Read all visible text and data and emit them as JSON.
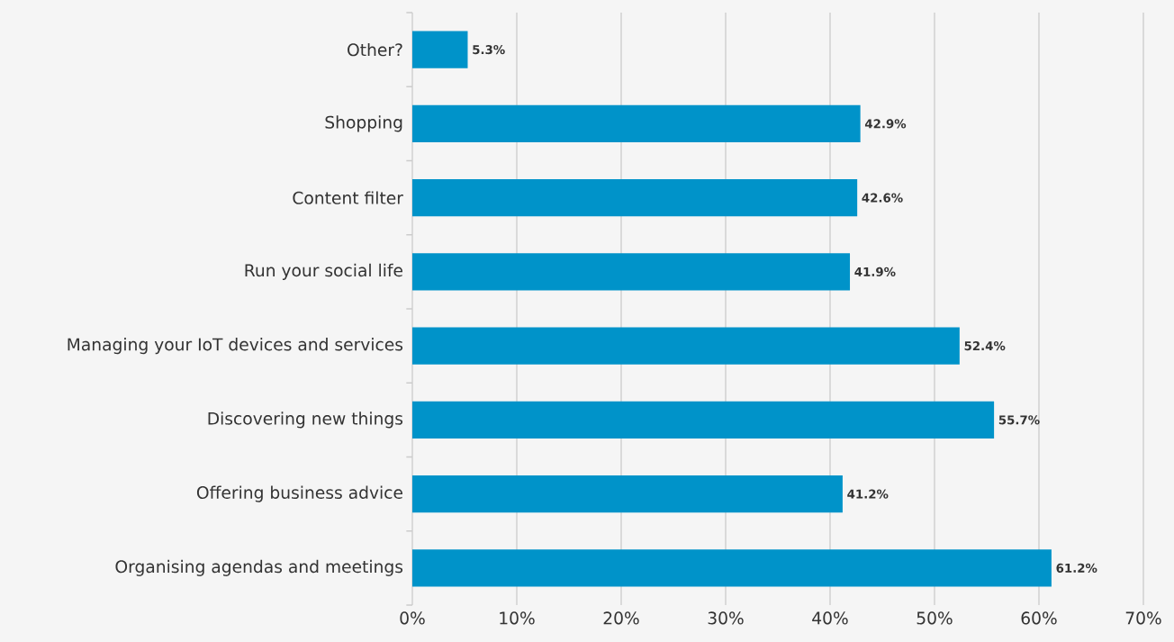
{
  "chart_data": {
    "type": "bar",
    "orientation": "horizontal",
    "categories": [
      "Other?",
      "Shopping",
      "Content filter",
      "Run your social life",
      "Managing your IoT devices and services",
      "Discovering new things",
      "Offering business advice",
      "Organising agendas and meetings"
    ],
    "values": [
      5.3,
      42.9,
      42.6,
      41.9,
      52.4,
      55.7,
      41.2,
      61.2
    ],
    "value_labels": [
      "5.3%",
      "42.9%",
      "42.6%",
      "41.9%",
      "52.4%",
      "55.7%",
      "41.2%",
      "61.2%"
    ],
    "color": "#0093c9",
    "xlim": [
      0,
      70
    ],
    "xticks": [
      {
        "value": 0,
        "label": "0%"
      },
      {
        "value": 10,
        "label": "10%"
      },
      {
        "value": 20,
        "label": "20%"
      },
      {
        "value": 30,
        "label": "30%"
      },
      {
        "value": 40,
        "label": "40%"
      },
      {
        "value": 50,
        "label": "50%"
      },
      {
        "value": 60,
        "label": "60%"
      },
      {
        "value": 70,
        "label": "70%"
      }
    ],
    "grid": "x"
  }
}
